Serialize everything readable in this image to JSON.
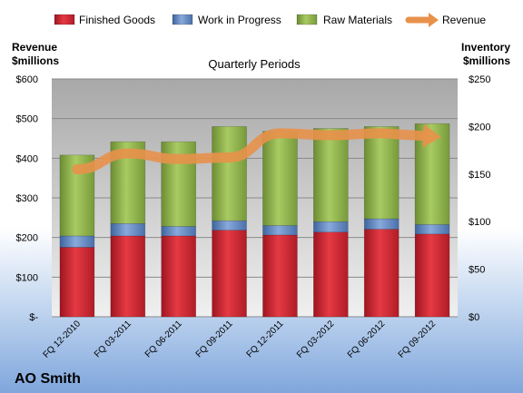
{
  "chart_data": {
    "type": "bar",
    "subtitle": "Quarterly Periods",
    "company": "AO Smith",
    "left_axis_title": [
      "Revenue",
      "$millions"
    ],
    "right_axis_title": [
      "Inventory",
      "$millions"
    ],
    "categories": [
      "FQ 12-2010",
      "FQ 03-2011",
      "FQ 06-2011",
      "FQ 09-2011",
      "FQ 12-2011",
      "FQ 03-2012",
      "FQ 06-2012",
      "FQ 09-2012"
    ],
    "left_axis": {
      "min": 0,
      "max": 600,
      "step": 100,
      "tick_labels": [
        "$-",
        "$100",
        "$200",
        "$300",
        "$400",
        "$500",
        "$600"
      ]
    },
    "right_axis": {
      "min": 0,
      "max": 250,
      "step": 50,
      "tick_labels": [
        "$0",
        "$50",
        "$100",
        "$150",
        "$200",
        "$250"
      ]
    },
    "stacked_series": [
      {
        "name": "Finished Goods",
        "axis": "right",
        "color": "#d9232d",
        "values": [
          73,
          85,
          85,
          91,
          86,
          89,
          92,
          87
        ]
      },
      {
        "name": "Work in Progress",
        "axis": "right",
        "color": "#5b84c4",
        "values": [
          12,
          13,
          10,
          10,
          10,
          11,
          11,
          10
        ]
      },
      {
        "name": "Raw Materials",
        "axis": "right",
        "color": "#8fb44a",
        "values": [
          85,
          86,
          89,
          99,
          99,
          98,
          97,
          106
        ]
      }
    ],
    "line_series": {
      "name": "Revenue",
      "axis": "left",
      "color": "#e8914a",
      "values": [
        372,
        412,
        398,
        402,
        463,
        458,
        463,
        455
      ]
    },
    "grid": true,
    "legend_position": "top"
  }
}
